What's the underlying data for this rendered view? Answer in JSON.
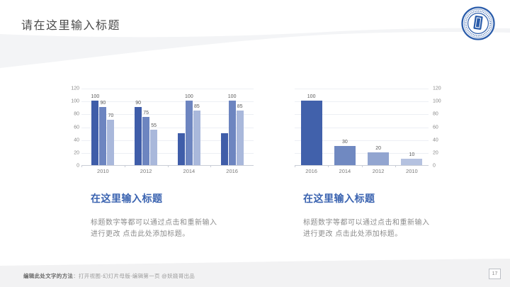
{
  "slide": {
    "title": "请在这里输入标题",
    "page_number": "17",
    "footer_bold": "编辑此处文字的方法",
    "footer_rest": "：打开视图-幻灯片母版-编辑第一页 @妖娆哥出品"
  },
  "sections": [
    {
      "heading": "在这里输入标题",
      "body_line1": "标题数字等都可以通过点击和重新输入",
      "body_line2": "进行更改 点击此处添加标题。"
    },
    {
      "heading": "在这里输入标题",
      "body_line1": "标题数字等都可以通过点击和重新输入",
      "body_line2": "进行更改 点击此处添加标题。"
    }
  ],
  "colors": {
    "heading_blue": "#3a63b0",
    "title_gray": "#4a4a4a",
    "body_gray": "#8c8c8c",
    "logo_blue": "#2a5caa",
    "series_dark": "#3f5da9",
    "series_mid": "#6d85c0",
    "series_light": "#a9b8db"
  },
  "chart_data": [
    {
      "type": "bar",
      "title": "",
      "categories": [
        "2010",
        "2012",
        "2014",
        "2016"
      ],
      "series": [
        {
          "name": "series-1",
          "color": "#3f5da9",
          "values": [
            100,
            90,
            50,
            50
          ],
          "labels": [
            "100",
            "90",
            "",
            ""
          ]
        },
        {
          "name": "series-2",
          "color": "#6d85c0",
          "values": [
            90,
            75,
            100,
            100
          ],
          "labels": [
            "90",
            "75",
            "100",
            "100"
          ]
        },
        {
          "name": "series-3",
          "color": "#a9b8db",
          "values": [
            70,
            55,
            85,
            85
          ],
          "labels": [
            "70",
            "55",
            "85",
            "85"
          ]
        }
      ],
      "xlabel": "",
      "ylabel": "",
      "ylim": [
        0,
        120
      ],
      "ytick_step": 20,
      "axis_side": "left",
      "grid": true,
      "legend": false
    },
    {
      "type": "bar",
      "title": "",
      "categories": [
        "2016",
        "2014",
        "2012",
        "2010"
      ],
      "values": [
        100,
        30,
        20,
        10
      ],
      "labels": [
        "100",
        "30",
        "20",
        "10"
      ],
      "bar_colors": [
        "#4161ab",
        "#7089c1",
        "#92a5d0",
        "#b5c2e0"
      ],
      "xlabel": "",
      "ylabel": "",
      "ylim": [
        0,
        120
      ],
      "ytick_step": 20,
      "axis_side": "right",
      "grid": true,
      "legend": false
    }
  ]
}
